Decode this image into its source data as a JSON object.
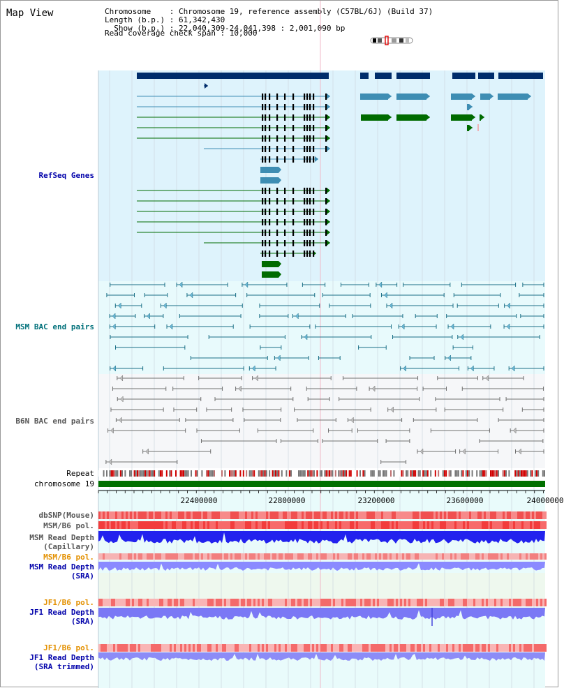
{
  "header": {
    "title": "Map View",
    "chromosome_line": "Chromosome    : Chromosome 19, reference assembly (C57BL/6J) (Build 37)",
    "length_line": "Length (b.p.) : 61,342,430",
    "show_line": "  Show (b.p.) : 22,040,309-24,041,398 : 2,001,090 bp",
    "coverage_line": "Read coverage check span : 10,000"
  },
  "tracks": {
    "refseq": "RefSeq Genes",
    "msm_bac": "MSM BAC end pairs",
    "b6n_bac": "B6N BAC end pairs",
    "repeat": "Repeat",
    "chromosome": "chromosome 19",
    "dbsnp": "dbSNP(Mouse)",
    "msm_b6_pol": "MSM/B6 pol.",
    "msm_depth_cap_1": "MSM Read Depth",
    "msm_depth_cap_2": "(Capillary)",
    "msm_b6_pol_sra": "MSM/B6 pol.",
    "msm_depth_sra_1": "MSM Read Depth",
    "msm_depth_sra_2": "(SRA)",
    "jf1_b6_pol": "JF1/B6 pol.",
    "jf1_depth_sra_1": "JF1 Read Depth",
    "jf1_depth_sra_2": "(SRA)",
    "jf1_b6_pol_trim": "JF1/B6 pol.",
    "jf1_depth_trim_1": "JF1 Read Depth",
    "jf1_depth_trim_2": "(SRA trimmed)"
  },
  "axis_ticks": [
    "22400000",
    "22800000",
    "23200000",
    "23600000",
    "24000000"
  ],
  "colors": {
    "refseq_bg": "#def3fc",
    "bac_bg": "#e8fafc",
    "navy": "#002d6b",
    "teal": "#3e8db3",
    "green": "#006b00",
    "chrom": "#007000",
    "depth_blue": "#2222ee",
    "depth_light": "#8a8aff",
    "pol_red": "#f25a5a"
  }
}
